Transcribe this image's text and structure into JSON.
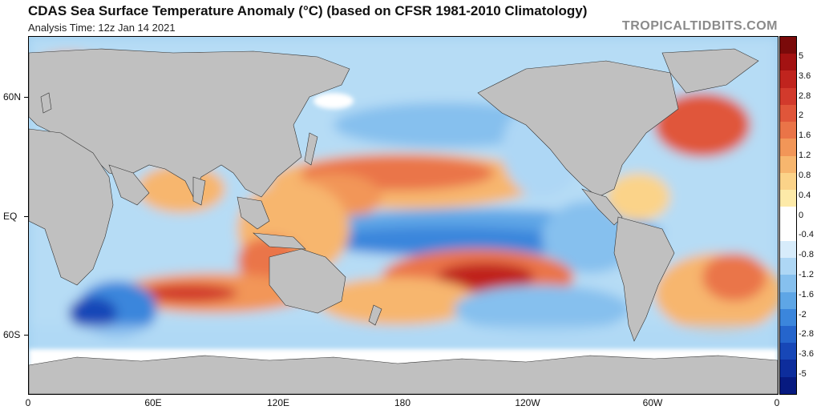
{
  "header": {
    "title": "CDAS Sea Surface Temperature Anomaly (°C) (based on CFSR 1981-2010 Climatology)",
    "analysis_time": "Analysis Time: 12z Jan 14 2021",
    "brand": "TROPICALTIDBITS.COM"
  },
  "map": {
    "lat_labels": [
      "60N",
      "EQ",
      "60S"
    ],
    "lon_labels": [
      "0",
      "60E",
      "120E",
      "180",
      "120W",
      "60W",
      "0"
    ],
    "land_color": "#c0c0c0",
    "ice_color": "#ffffff"
  },
  "colorbar": {
    "labels": [
      "5",
      "3.6",
      "2.8",
      "2",
      "1.6",
      "1.2",
      "0.8",
      "0.4",
      "0",
      "-0.4",
      "-0.8",
      "-1.2",
      "-1.6",
      "-2",
      "-2.8",
      "-3.6",
      "-5"
    ],
    "colors": [
      "#7a0a0a",
      "#a31212",
      "#c0241e",
      "#d23a2c",
      "#e0563a",
      "#ea7448",
      "#f29658",
      "#f7b66e",
      "#fbd389",
      "#fdeaa8",
      "#ffffff",
      "#ffffff",
      "#d7ecfb",
      "#aed7f5",
      "#86c0ee",
      "#5ea6e6",
      "#3b86dc",
      "#2565cc",
      "#1747b7",
      "#0d2d9c",
      "#071a80"
    ]
  }
}
